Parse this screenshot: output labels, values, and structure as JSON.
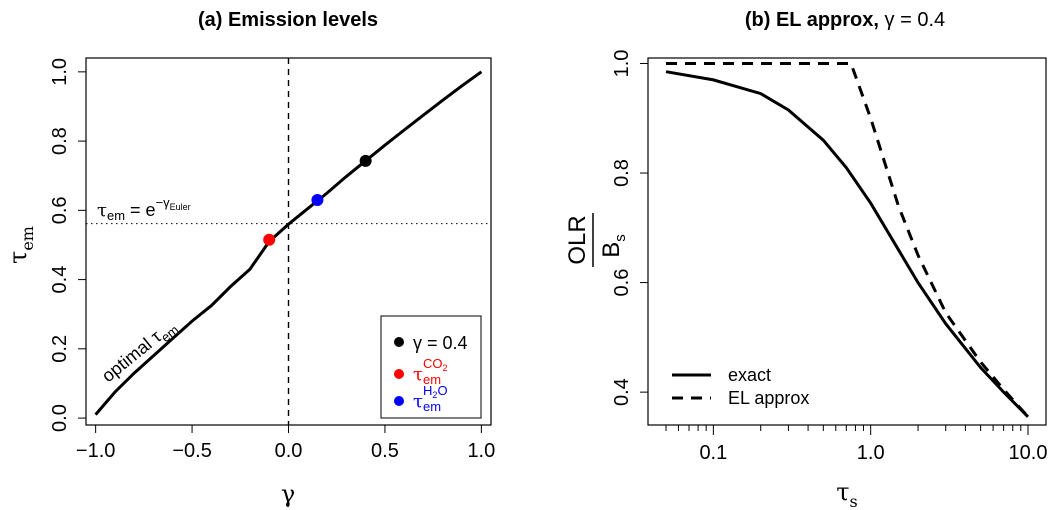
{
  "chart_data": [
    {
      "id": "a",
      "type": "line",
      "title": "(a) Emission levels",
      "xlabel": "γ",
      "ylabel": {
        "base": "τ",
        "sub": "em"
      },
      "xlim": [
        -1.05,
        1.05
      ],
      "ylim": [
        -0.02,
        1.04
      ],
      "xticks": [
        -1.0,
        -0.5,
        0.0,
        0.5,
        1.0
      ],
      "xtick_labels": [
        "−1.0",
        "−0.5",
        "0.0",
        "0.5",
        "1.0"
      ],
      "yticks": [
        0.0,
        0.2,
        0.4,
        0.6,
        0.8,
        1.0
      ],
      "ytick_labels": [
        "0.0",
        "0.2",
        "0.4",
        "0.6",
        "0.8",
        "1.0"
      ],
      "grid": false,
      "series": [
        {
          "label": {
            "base": "optimal τ",
            "sub": "em"
          },
          "style": "solid",
          "color": "#000000",
          "x": [
            -1.0,
            -0.9,
            -0.8,
            -0.7,
            -0.6,
            -0.5,
            -0.4,
            -0.3,
            -0.2,
            -0.1,
            0.0,
            0.1,
            0.2,
            0.3,
            0.4,
            0.5,
            0.6,
            0.7,
            0.8,
            0.9,
            1.0
          ],
          "y": [
            0.01,
            0.075,
            0.13,
            0.18,
            0.23,
            0.28,
            0.325,
            0.38,
            0.43,
            0.51,
            0.56,
            0.605,
            0.65,
            0.698,
            0.743,
            0.788,
            0.832,
            0.875,
            0.918,
            0.96,
            1.0
          ]
        }
      ],
      "reference_lines": [
        {
          "orientation": "vertical",
          "value": 0.0,
          "style": "dashed"
        },
        {
          "orientation": "horizontal",
          "value": 0.5615,
          "style": "dotted"
        }
      ],
      "points": [
        {
          "x": -0.1,
          "y": 0.515,
          "color": "#ff0000"
        },
        {
          "x": 0.15,
          "y": 0.63,
          "color": "#0000ff"
        },
        {
          "x": 0.4,
          "y": 0.743,
          "color": "#000000"
        }
      ],
      "annotations": {
        "hline_label": {
          "lhs_base": "τ",
          "lhs_sub": "em",
          "eq": " = e",
          "sup": "−γ",
          "sup_sub": "Euler"
        }
      },
      "legend": {
        "position": "bottom-right",
        "entries": [
          {
            "color": "#000000",
            "text": "γ = 0.4"
          },
          {
            "color": "#ff0000",
            "base": "τ",
            "sub": "em",
            "sup": "CO",
            "sup_sub": "2"
          },
          {
            "color": "#0000ff",
            "base": "τ",
            "sub": "em",
            "sup": "H",
            "sup_sub": "2",
            "sup_tail": "O"
          }
        ]
      }
    },
    {
      "id": "b",
      "type": "line",
      "title_bold": "(b) EL approx,",
      "title_plain": " γ = 0.4",
      "xlabel": {
        "base": "τ",
        "sub": "s"
      },
      "ylabel": {
        "num": "OLR",
        "den_base": "B",
        "den_sub": "s"
      },
      "x_scale": "log",
      "xlim": [
        0.05,
        10.0
      ],
      "ylim": [
        0.34,
        1.01
      ],
      "xticks": [
        0.1,
        1.0,
        10.0
      ],
      "xtick_labels": [
        "0.1",
        "1.0",
        "10.0"
      ],
      "x_minor_ticks": [
        0.05,
        0.06,
        0.07,
        0.08,
        0.09,
        0.2,
        0.3,
        0.4,
        0.5,
        0.6,
        0.7,
        0.8,
        0.9,
        2,
        3,
        4,
        5,
        6,
        7,
        8,
        9
      ],
      "yticks": [
        0.4,
        0.6,
        0.8,
        1.0
      ],
      "ytick_labels": [
        "0.4",
        "0.6",
        "0.8",
        "1.0"
      ],
      "grid": false,
      "series": [
        {
          "name": "exact",
          "style": "solid",
          "x": [
            0.05,
            0.1,
            0.2,
            0.3,
            0.5,
            0.7,
            1.0,
            1.5,
            2.0,
            3.0,
            5.0,
            7.0,
            10.0
          ],
          "y": [
            0.985,
            0.97,
            0.945,
            0.915,
            0.86,
            0.81,
            0.745,
            0.66,
            0.6,
            0.525,
            0.445,
            0.4,
            0.355
          ]
        },
        {
          "name": "EL approx",
          "style": "dashed",
          "x": [
            0.05,
            0.1,
            0.2,
            0.3,
            0.5,
            0.7,
            0.75,
            1.0,
            1.5,
            2.0,
            3.0,
            5.0,
            7.0,
            10.0
          ],
          "y": [
            1.0,
            1.0,
            1.0,
            1.0,
            1.0,
            1.0,
            1.0,
            0.9,
            0.74,
            0.65,
            0.545,
            0.455,
            0.405,
            0.355
          ]
        }
      ],
      "legend": {
        "position": "bottom-left",
        "entries": [
          {
            "style": "solid",
            "text": "exact"
          },
          {
            "style": "dashed",
            "text": "EL approx"
          }
        ]
      }
    }
  ]
}
